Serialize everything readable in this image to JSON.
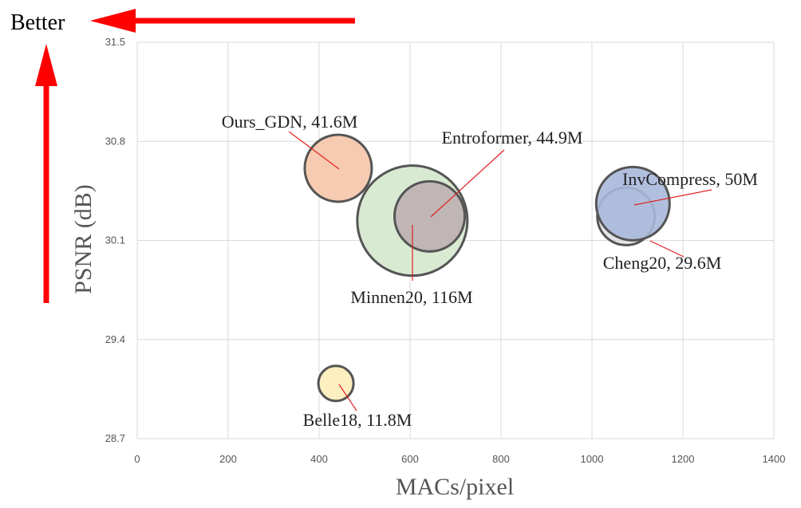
{
  "chart_data": {
    "type": "bubble",
    "xlabel": "MACs/pixel",
    "ylabel": "PSNR (dB)",
    "xlim": [
      0,
      1400
    ],
    "ylim": [
      28.7,
      31.5
    ],
    "x_ticks": [
      "0",
      "200",
      "400",
      "600",
      "800",
      "1000",
      "1200",
      "1400"
    ],
    "y_ticks": [
      "28.7",
      "29.4",
      "30.1",
      "30.8",
      "31.5"
    ],
    "grid": true,
    "annotation": "Better",
    "series": [
      {
        "name": "Minnen20",
        "label": "Minnen20, 116M",
        "x": 605,
        "y": 30.24,
        "size_m": 116,
        "color": "#d9ead3"
      },
      {
        "name": "Entroformer",
        "label": "Entroformer, 44.9M",
        "x": 643,
        "y": 30.27,
        "size_m": 44.9,
        "color": "#b8a9ae"
      },
      {
        "name": "Ours_GDN",
        "label": "Ours_GDN, 41.6M",
        "x": 442,
        "y": 30.61,
        "size_m": 41.6,
        "color": "#f6cbb1"
      },
      {
        "name": "InvCompress",
        "label": "InvCompress, 50M",
        "x": 1090,
        "y": 30.36,
        "size_m": 50,
        "color": "#a8b8dc"
      },
      {
        "name": "Cheng20",
        "label": "Cheng20, 29.6M",
        "x": 1075,
        "y": 30.27,
        "size_m": 29.6,
        "color": "#c5c8cf"
      },
      {
        "name": "Belle18",
        "label": "Belle18, 11.8M",
        "x": 437,
        "y": 29.09,
        "size_m": 11.8,
        "color": "#fdefc0"
      }
    ]
  },
  "colors": {
    "arrow": "#ff0000",
    "leader_line": "#e02020",
    "grid": "#d9d9d9",
    "bubble_stroke": "#555555"
  }
}
